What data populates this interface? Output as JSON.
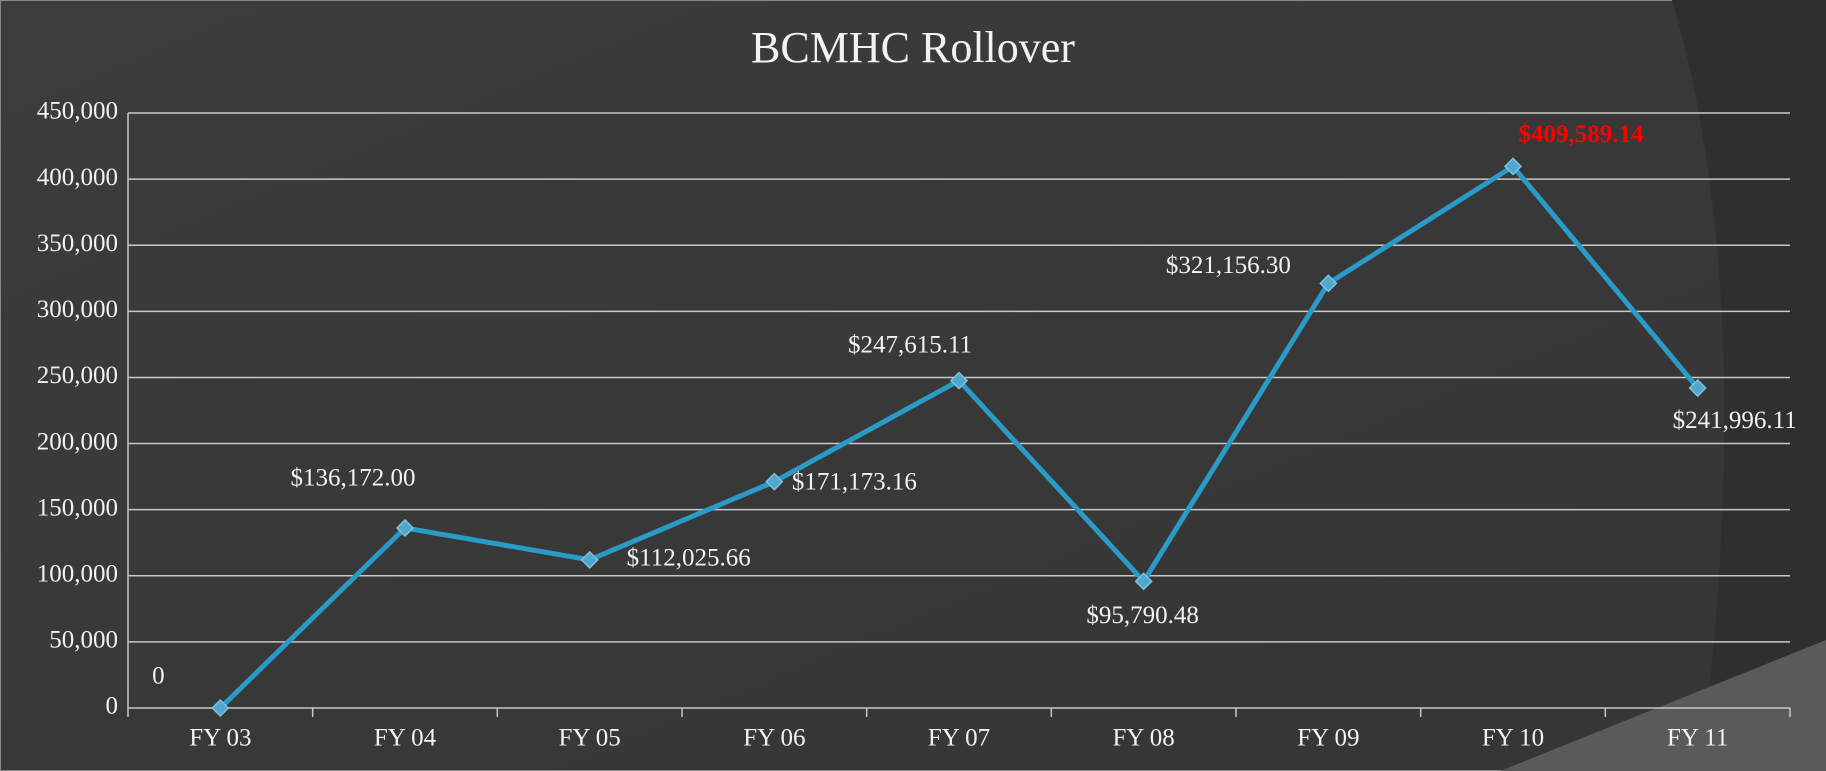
{
  "chart_data": {
    "type": "line",
    "title": "BCMHC Rollover",
    "categories": [
      "FY 03",
      "FY 04",
      "FY 05",
      "FY 06",
      "FY 07",
      "FY 08",
      "FY 09",
      "FY 10",
      "FY 11"
    ],
    "series": [
      {
        "color": "#2a9ac6",
        "values": [
          0,
          136172.0,
          112025.66,
          171173.16,
          247615.11,
          95790.48,
          321156.3,
          409589.14,
          241996.11
        ],
        "value_labels": [
          "0",
          "$136,172.00",
          "$112,025.66",
          "$171,173.16",
          "$247,615.11",
          "$95,790.48",
          "$321,156.30",
          "$409,589.14",
          "$241,996.11"
        ],
        "value_label_colors": [
          "#f2f2f2",
          "#f2f2f2",
          "#f2f2f2",
          "#f2f2f2",
          "#f2f2f2",
          "#f2f2f2",
          "#f2f2f2",
          "#ff0000",
          "#f2f2f2"
        ]
      }
    ],
    "ylim": [
      0,
      450000
    ],
    "yticks": [
      0,
      {
        "value": 50000,
        "label": "50,000"
      },
      {
        "value": 100000,
        "label": "100,000"
      },
      {
        "value": 150000,
        "label": "150,000"
      },
      {
        "value": 200000,
        "label": "200,000"
      },
      {
        "value": 250000,
        "label": "250,000"
      },
      {
        "value": 300000,
        "label": "300,000"
      },
      {
        "value": 350000,
        "label": "350,000"
      },
      {
        "value": 400000,
        "label": "400,000"
      },
      {
        "value": 450000,
        "label": "450,000"
      }
    ],
    "grid": true
  }
}
